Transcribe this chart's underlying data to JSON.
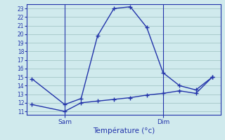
{
  "xlabel": "Température (°c)",
  "background_color": "#d0eaed",
  "line_color": "#2233aa",
  "grid_color": "#aacccc",
  "yticks": [
    11,
    12,
    13,
    14,
    15,
    16,
    17,
    18,
    19,
    20,
    21,
    22,
    23
  ],
  "ylim": [
    10.6,
    23.5
  ],
  "x_sam": 2,
  "x_dim": 8,
  "series1_x": [
    0,
    2,
    3,
    4,
    5,
    6,
    7,
    8,
    9,
    10,
    11
  ],
  "series1_y": [
    14.8,
    11.8,
    12.5,
    19.8,
    23.0,
    23.2,
    20.8,
    15.5,
    14.0,
    13.5,
    15.0
  ],
  "series2_x": [
    0,
    2,
    3,
    4,
    5,
    6,
    7,
    8,
    9,
    10,
    11
  ],
  "series2_y": [
    11.8,
    11.0,
    12.0,
    12.2,
    12.4,
    12.6,
    12.9,
    13.1,
    13.4,
    13.1,
    15.0
  ],
  "xlim": [
    -0.3,
    11.5
  ]
}
